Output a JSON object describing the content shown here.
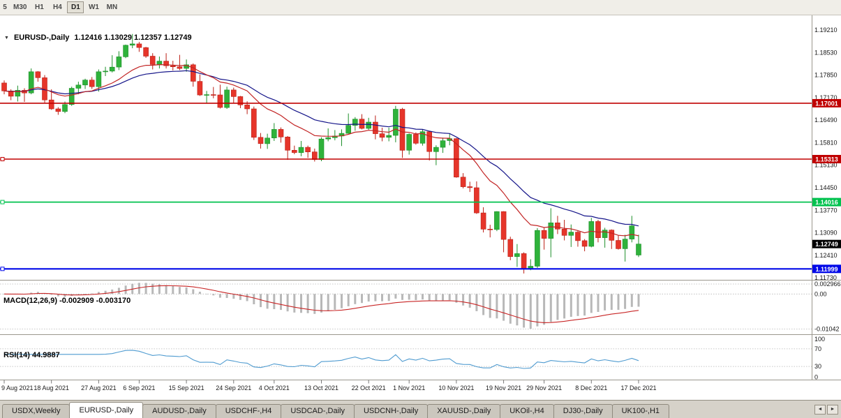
{
  "toolbar": {
    "timeframes": [
      {
        "label": "5",
        "active": false
      },
      {
        "label": "M30",
        "active": false
      },
      {
        "label": "H1",
        "active": false
      },
      {
        "label": "H4",
        "active": false
      },
      {
        "label": "D1",
        "active": true
      },
      {
        "label": "W1",
        "active": false
      },
      {
        "label": "MN",
        "active": false
      }
    ]
  },
  "chart_data": [
    {
      "type": "candlestick",
      "title": "EURUSD-,Daily",
      "collapse_icon": "▼",
      "ohlc_text": "1.12416 1.13029 1.12357 1.12749",
      "open": 1.12416,
      "high": 1.13029,
      "low": 1.12357,
      "close": 1.12749,
      "y_axis_labels": [
        "1.19210",
        "1.18530",
        "1.17850",
        "1.17170",
        "1.16490",
        "1.15810",
        "1.15130",
        "1.14450",
        "1.13770",
        "1.13090",
        "1.12410",
        "1.11730"
      ],
      "y_range": [
        1.1169,
        1.1961
      ],
      "x_tick_indices": [
        0,
        7,
        14,
        20,
        27,
        34,
        40,
        47,
        54,
        60,
        67,
        74,
        80,
        87,
        94
      ],
      "x_tick_labels": [
        "9 Aug 2021",
        "18 Aug 2021",
        "27 Aug 2021",
        "6 Sep 2021",
        "15 Sep 2021",
        "24 Sep 2021",
        "4 Oct 2021",
        "13 Oct 2021",
        "22 Oct 2021",
        "1 Nov 2021",
        "10 Nov 2021",
        "19 Nov 2021",
        "29 Nov 2021",
        "8 Dec 2021",
        "17 Dec 2021"
      ],
      "colors": {
        "up_fill": "#2fb23b",
        "up_stroke": "#1d8f2a",
        "down_fill": "#e6352a",
        "down_stroke": "#bb1f16"
      },
      "moving_averages": [
        {
          "name": "ma-slow",
          "period": 24,
          "color": "#141489"
        },
        {
          "name": "ma-fast",
          "period": 13,
          "color": "#c22424"
        }
      ],
      "h_lines": [
        {
          "value": 1.17001,
          "label": "1.17001",
          "color": "#c00000",
          "width": 1.6,
          "handle": false
        },
        {
          "value": 1.15313,
          "label": "1.15313",
          "color": "#c00000",
          "width": 1.6,
          "handle": true
        },
        {
          "value": 1.14016,
          "label": "1.14016",
          "color": "#00c24e",
          "width": 1.8,
          "handle": true
        },
        {
          "value": 1.11999,
          "label": "1.11999",
          "color": "#0008e8",
          "width": 2.2,
          "handle": true
        }
      ],
      "price_badge": {
        "value": 1.12749,
        "label": "1.12749",
        "color": "#000000"
      },
      "candles": [
        [
          1.1761,
          1.1769,
          1.1727,
          1.1737
        ],
        [
          1.1737,
          1.1742,
          1.1709,
          1.1721
        ],
        [
          1.1721,
          1.1753,
          1.1705,
          1.1739
        ],
        [
          1.1739,
          1.1745,
          1.1704,
          1.1731
        ],
        [
          1.1731,
          1.1805,
          1.1727,
          1.1795
        ],
        [
          1.1795,
          1.1797,
          1.1765,
          1.1777
        ],
        [
          1.1777,
          1.1785,
          1.1702,
          1.171
        ],
        [
          1.171,
          1.1742,
          1.168,
          1.1683
        ],
        [
          1.1683,
          1.1688,
          1.1665,
          1.1675
        ],
        [
          1.1675,
          1.1705,
          1.167,
          1.1696
        ],
        [
          1.1696,
          1.175,
          1.1692,
          1.1745
        ],
        [
          1.1745,
          1.1765,
          1.1727,
          1.1755
        ],
        [
          1.1755,
          1.1774,
          1.1743,
          1.177
        ],
        [
          1.177,
          1.1779,
          1.1743,
          1.175
        ],
        [
          1.175,
          1.1802,
          1.1735,
          1.1795
        ],
        [
          1.1795,
          1.181,
          1.1782,
          1.1797
        ],
        [
          1.1797,
          1.1845,
          1.1793,
          1.1809
        ],
        [
          1.1809,
          1.1857,
          1.18,
          1.184
        ],
        [
          1.184,
          1.1877,
          1.1836,
          1.1875
        ],
        [
          1.1875,
          1.1909,
          1.1866,
          1.1879
        ],
        [
          1.1879,
          1.1885,
          1.1855,
          1.1868
        ],
        [
          1.1868,
          1.187,
          1.1837,
          1.1842
        ],
        [
          1.1842,
          1.1851,
          1.1802,
          1.1817
        ],
        [
          1.1817,
          1.1841,
          1.1805,
          1.1827
        ],
        [
          1.1827,
          1.1851,
          1.1805,
          1.1813
        ],
        [
          1.1813,
          1.1828,
          1.1799,
          1.181
        ],
        [
          1.181,
          1.1846,
          1.18,
          1.1805
        ],
        [
          1.1805,
          1.1832,
          1.1795,
          1.1816
        ],
        [
          1.1816,
          1.182,
          1.175,
          1.1766
        ],
        [
          1.1766,
          1.1787,
          1.1722,
          1.1725
        ],
        [
          1.1725,
          1.1737,
          1.17,
          1.1726
        ],
        [
          1.1726,
          1.1749,
          1.1715,
          1.1725
        ],
        [
          1.1725,
          1.1756,
          1.1684,
          1.1687
        ],
        [
          1.1687,
          1.175,
          1.1683,
          1.174
        ],
        [
          1.174,
          1.1747,
          1.1701,
          1.172
        ],
        [
          1.172,
          1.1722,
          1.1685,
          1.1695
        ],
        [
          1.1695,
          1.1706,
          1.1667,
          1.1683
        ],
        [
          1.1683,
          1.169,
          1.1589,
          1.1597
        ],
        [
          1.1597,
          1.161,
          1.1563,
          1.1578
        ],
        [
          1.1578,
          1.1608,
          1.1562,
          1.1595
        ],
        [
          1.1595,
          1.164,
          1.1586,
          1.1621
        ],
        [
          1.1621,
          1.1627,
          1.1581,
          1.1598
        ],
        [
          1.1598,
          1.1601,
          1.1529,
          1.1558
        ],
        [
          1.1558,
          1.1572,
          1.1546,
          1.1551
        ],
        [
          1.1551,
          1.1586,
          1.154,
          1.1567
        ],
        [
          1.1567,
          1.1572,
          1.1535,
          1.1553
        ],
        [
          1.1553,
          1.1563,
          1.1524,
          1.153
        ],
        [
          1.153,
          1.1597,
          1.1525,
          1.1592
        ],
        [
          1.1592,
          1.1624,
          1.1585,
          1.1596
        ],
        [
          1.1596,
          1.1619,
          1.1588,
          1.1601
        ],
        [
          1.1601,
          1.1621,
          1.1571,
          1.1609
        ],
        [
          1.1609,
          1.1669,
          1.1608,
          1.1633
        ],
        [
          1.1633,
          1.1658,
          1.1617,
          1.1652
        ],
        [
          1.1652,
          1.1667,
          1.1621,
          1.1624
        ],
        [
          1.1624,
          1.1656,
          1.162,
          1.1643
        ],
        [
          1.1643,
          1.1663,
          1.1591,
          1.1608
        ],
        [
          1.1608,
          1.1626,
          1.1585,
          1.1597
        ],
        [
          1.1597,
          1.1626,
          1.1585,
          1.1603
        ],
        [
          1.1603,
          1.1692,
          1.1582,
          1.1682
        ],
        [
          1.1682,
          1.1686,
          1.1535,
          1.1558
        ],
        [
          1.1558,
          1.1609,
          1.1545,
          1.1606
        ],
        [
          1.1606,
          1.1612,
          1.1575,
          1.1579
        ],
        [
          1.1579,
          1.162,
          1.1572,
          1.1614
        ],
        [
          1.1614,
          1.1616,
          1.1527,
          1.1554
        ],
        [
          1.1554,
          1.1573,
          1.1513,
          1.1567
        ],
        [
          1.1567,
          1.1596,
          1.155,
          1.1587
        ],
        [
          1.1587,
          1.1608,
          1.1573,
          1.1593
        ],
        [
          1.1593,
          1.1595,
          1.1475,
          1.1477
        ],
        [
          1.1477,
          1.1489,
          1.1443,
          1.1448
        ],
        [
          1.1448,
          1.1463,
          1.1432,
          1.1445
        ],
        [
          1.1445,
          1.1464,
          1.1366,
          1.1369
        ],
        [
          1.1369,
          1.1386,
          1.131,
          1.132
        ],
        [
          1.132,
          1.1333,
          1.1295,
          1.1319
        ],
        [
          1.1319,
          1.1374,
          1.1314,
          1.1373
        ],
        [
          1.1373,
          1.1374,
          1.125,
          1.1289
        ],
        [
          1.1289,
          1.1297,
          1.1226,
          1.1237
        ],
        [
          1.1237,
          1.1275,
          1.1206,
          1.1246
        ],
        [
          1.1246,
          1.125,
          1.1186,
          1.12
        ],
        [
          1.12,
          1.1229,
          1.1196,
          1.1208
        ],
        [
          1.1208,
          1.1323,
          1.1203,
          1.1316
        ],
        [
          1.1316,
          1.1325,
          1.1258,
          1.1292
        ],
        [
          1.1292,
          1.1383,
          1.1235,
          1.1339
        ],
        [
          1.1339,
          1.136,
          1.1305,
          1.132
        ],
        [
          1.132,
          1.1348,
          1.1286,
          1.1301
        ],
        [
          1.1301,
          1.1334,
          1.1266,
          1.1311
        ],
        [
          1.1311,
          1.1315,
          1.1267,
          1.1285
        ],
        [
          1.1285,
          1.129,
          1.1253,
          1.1268
        ],
        [
          1.1268,
          1.1354,
          1.1265,
          1.1343
        ],
        [
          1.1343,
          1.1348,
          1.128,
          1.1294
        ],
        [
          1.1294,
          1.1324,
          1.1264,
          1.1317
        ],
        [
          1.1317,
          1.1319,
          1.126,
          1.1286
        ],
        [
          1.1286,
          1.1302,
          1.1258,
          1.1261
        ],
        [
          1.1261,
          1.1303,
          1.1222,
          1.129
        ],
        [
          1.129,
          1.136,
          1.128,
          1.133
        ],
        [
          1.12416,
          1.13029,
          1.12357,
          1.12749
        ]
      ]
    },
    {
      "type": "macd",
      "title": "MACD(12,26,9) -0.002909 -0.003170",
      "fast": 12,
      "slow": 26,
      "signal": 9,
      "value": -0.002909,
      "signal_value": -0.00317,
      "axis_labels": [
        "0.002966",
        "0.00",
        "-0.01042"
      ],
      "axis_values": [
        0.002966,
        0,
        -0.01042
      ],
      "range": [
        -0.0118,
        0.0038
      ],
      "histogram_color": "#b8b8b8",
      "signal_color": "#c82525"
    },
    {
      "type": "rsi",
      "title": "RSI(14) 44.9887",
      "period": 14,
      "value": 44.9887,
      "axis_labels": [
        "100",
        "70",
        "30",
        "0"
      ],
      "axis_values": [
        100,
        70,
        30,
        0
      ],
      "dashed_levels": [
        70,
        30
      ],
      "range": [
        0,
        100
      ],
      "line_color": "#4f9bd0"
    }
  ],
  "tabbar": {
    "tabs": [
      "USDX,Weekly",
      "EURUSD-,Daily",
      "AUDUSD-,Daily",
      "USDCHF-,H4",
      "USDCAD-,Daily",
      "USDCNH-,Daily",
      "XAUUSD-,Daily",
      "UKOil-,H4",
      "DJ30-,Daily",
      "UK100-,H1"
    ],
    "active_index": 1,
    "scroll_left_icon": "◄",
    "scroll_right_icon": "►"
  }
}
